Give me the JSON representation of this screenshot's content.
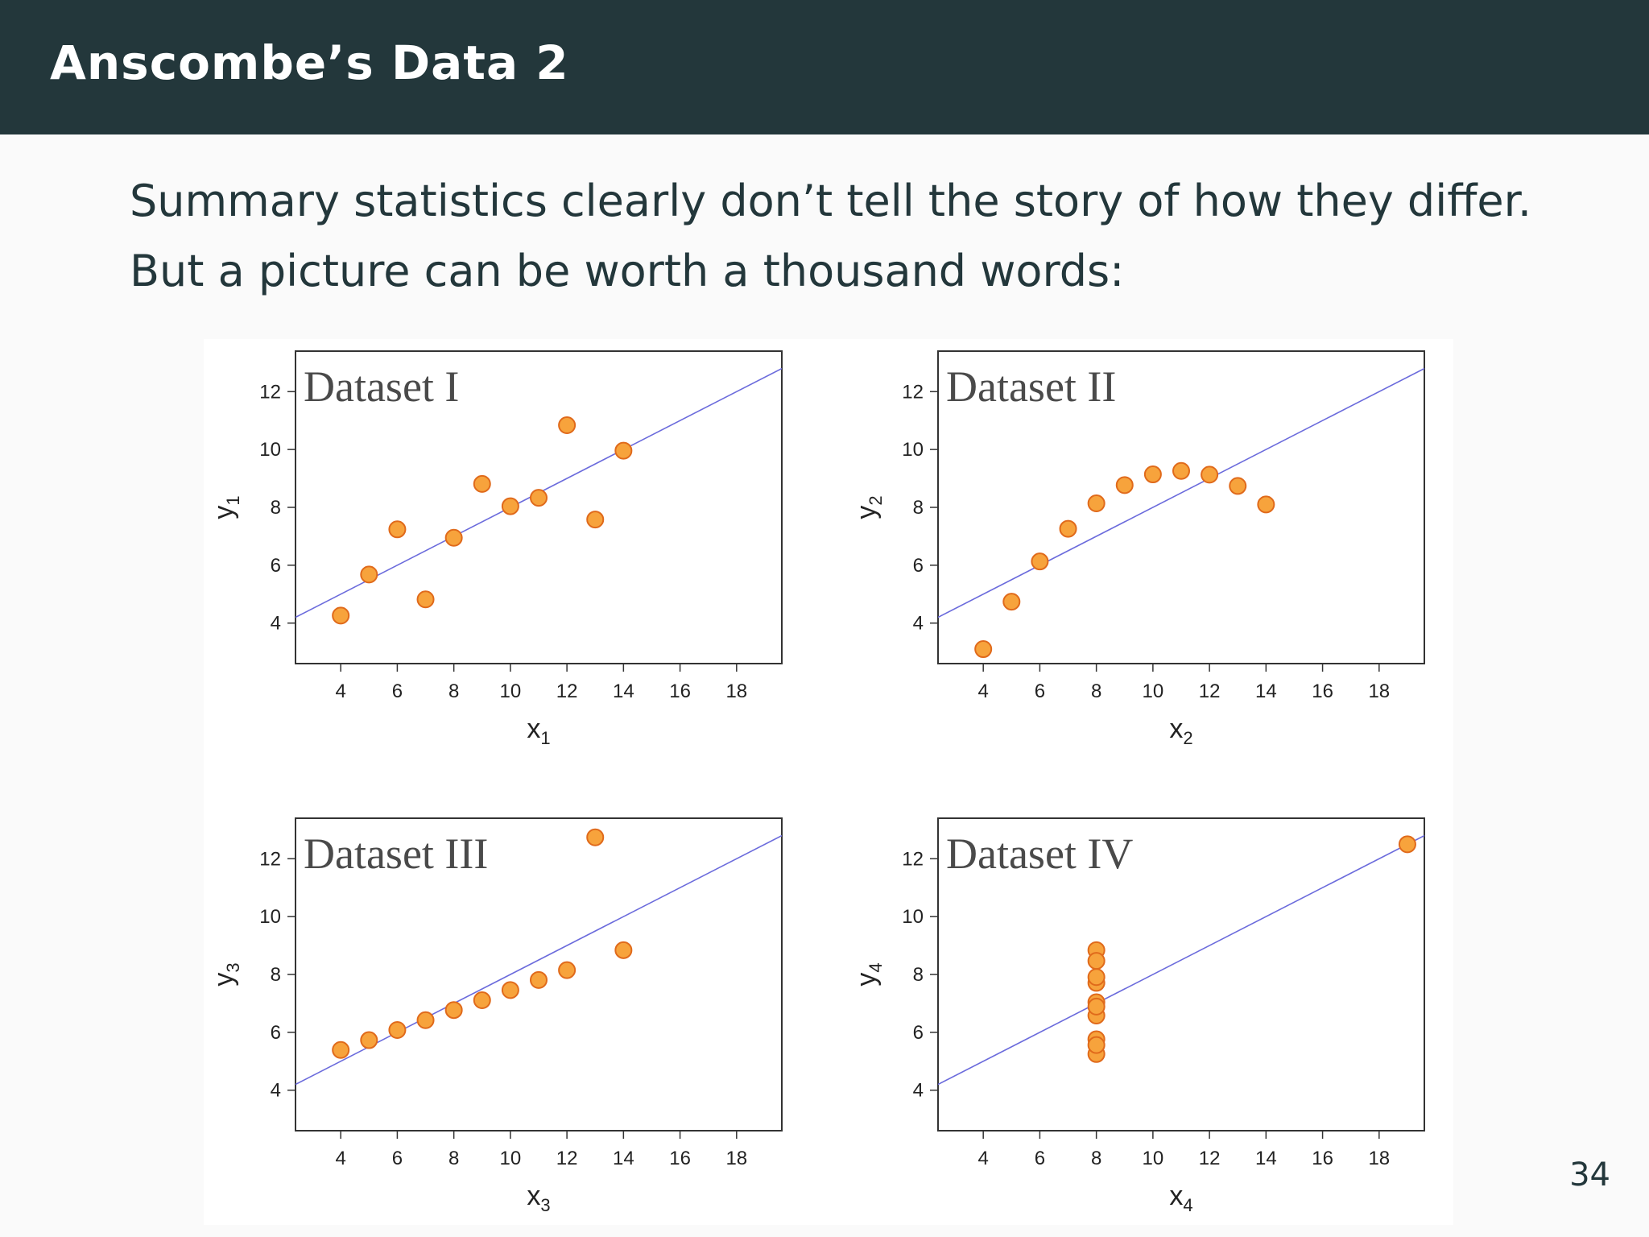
{
  "slide": {
    "title": "Anscombe’s Data 2",
    "text_lines": [
      "Summary statistics clearly don’t tell the story of how they differ.",
      "But a picture can be worth a thousand words:"
    ],
    "page_number": "34"
  },
  "colors": {
    "header_bg": "#23373b",
    "header_text": "#ffffff",
    "body_text": "#23373b",
    "point_fill": "#f7a33c",
    "point_stroke": "#e06a1b",
    "regression_line": "#6b6bdc",
    "axis": "#333333"
  },
  "chart_data": [
    {
      "type": "scatter",
      "title": "Dataset I",
      "xlabel": "x",
      "xlabel_sub": "1",
      "ylabel": "y",
      "ylabel_sub": "1",
      "xlim": [
        2.4,
        19.6
      ],
      "ylim": [
        2.6,
        13.4
      ],
      "xticks": [
        4,
        6,
        8,
        10,
        12,
        14,
        16,
        18
      ],
      "yticks": [
        4,
        6,
        8,
        10,
        12
      ],
      "grid": false,
      "regression": {
        "intercept": 3.0,
        "slope": 0.5
      },
      "points": [
        [
          10,
          8.04
        ],
        [
          8,
          6.95
        ],
        [
          13,
          7.58
        ],
        [
          9,
          8.81
        ],
        [
          11,
          8.33
        ],
        [
          14,
          9.96
        ],
        [
          6,
          7.24
        ],
        [
          4,
          4.26
        ],
        [
          12,
          10.84
        ],
        [
          7,
          4.82
        ],
        [
          5,
          5.68
        ]
      ]
    },
    {
      "type": "scatter",
      "title": "Dataset II",
      "xlabel": "x",
      "xlabel_sub": "2",
      "ylabel": "y",
      "ylabel_sub": "2",
      "xlim": [
        2.4,
        19.6
      ],
      "ylim": [
        2.6,
        13.4
      ],
      "xticks": [
        4,
        6,
        8,
        10,
        12,
        14,
        16,
        18
      ],
      "yticks": [
        4,
        6,
        8,
        10,
        12
      ],
      "grid": false,
      "regression": {
        "intercept": 3.0,
        "slope": 0.5
      },
      "points": [
        [
          10,
          9.14
        ],
        [
          8,
          8.14
        ],
        [
          13,
          8.74
        ],
        [
          9,
          8.77
        ],
        [
          11,
          9.26
        ],
        [
          14,
          8.1
        ],
        [
          6,
          6.13
        ],
        [
          4,
          3.1
        ],
        [
          12,
          9.13
        ],
        [
          7,
          7.26
        ],
        [
          5,
          4.74
        ]
      ]
    },
    {
      "type": "scatter",
      "title": "Dataset III",
      "xlabel": "x",
      "xlabel_sub": "3",
      "ylabel": "y",
      "ylabel_sub": "3",
      "xlim": [
        2.4,
        19.6
      ],
      "ylim": [
        2.6,
        13.4
      ],
      "xticks": [
        4,
        6,
        8,
        10,
        12,
        14,
        16,
        18
      ],
      "yticks": [
        4,
        6,
        8,
        10,
        12
      ],
      "grid": false,
      "regression": {
        "intercept": 3.0,
        "slope": 0.5
      },
      "points": [
        [
          10,
          7.46
        ],
        [
          8,
          6.77
        ],
        [
          13,
          12.74
        ],
        [
          9,
          7.11
        ],
        [
          11,
          7.81
        ],
        [
          14,
          8.84
        ],
        [
          6,
          6.08
        ],
        [
          4,
          5.39
        ],
        [
          12,
          8.15
        ],
        [
          7,
          6.42
        ],
        [
          5,
          5.73
        ]
      ]
    },
    {
      "type": "scatter",
      "title": "Dataset IV",
      "xlabel": "x",
      "xlabel_sub": "4",
      "ylabel": "y",
      "ylabel_sub": "4",
      "xlim": [
        2.4,
        19.6
      ],
      "ylim": [
        2.6,
        13.4
      ],
      "xticks": [
        4,
        6,
        8,
        10,
        12,
        14,
        16,
        18
      ],
      "yticks": [
        4,
        6,
        8,
        10,
        12
      ],
      "grid": false,
      "regression": {
        "intercept": 3.0,
        "slope": 0.5
      },
      "points": [
        [
          8,
          6.58
        ],
        [
          8,
          5.76
        ],
        [
          8,
          7.71
        ],
        [
          8,
          8.84
        ],
        [
          8,
          8.47
        ],
        [
          8,
          7.04
        ],
        [
          8,
          5.25
        ],
        [
          19,
          12.5
        ],
        [
          8,
          5.56
        ],
        [
          8,
          7.91
        ],
        [
          8,
          6.89
        ]
      ]
    }
  ]
}
